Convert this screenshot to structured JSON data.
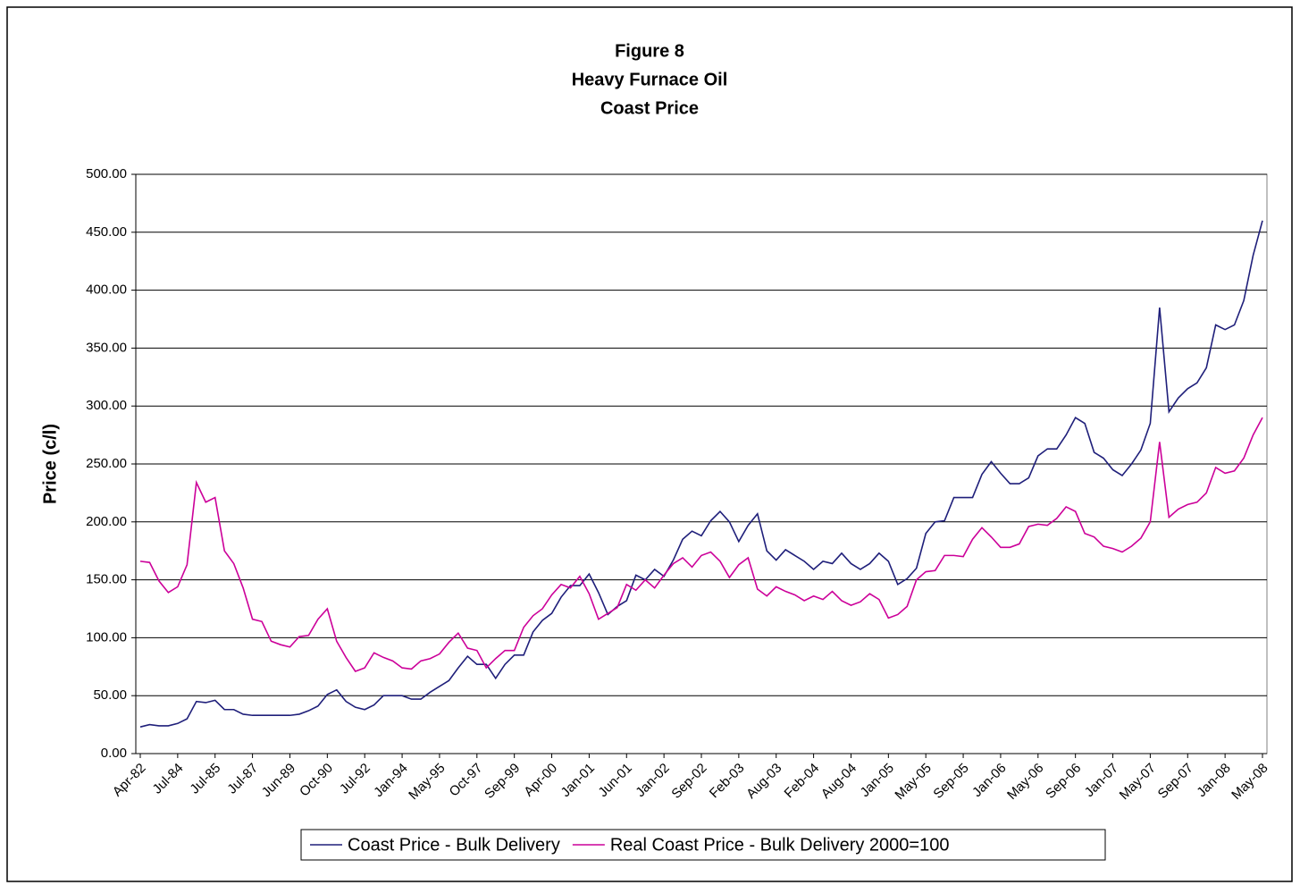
{
  "chart_data": {
    "type": "line",
    "title": [
      "Figure 8",
      "Heavy Furnace Oil",
      "Coast Price"
    ],
    "y_label": "Price (c/l)",
    "categories": [
      "Apr-82",
      null,
      null,
      null,
      "Jul-84",
      null,
      null,
      null,
      "Jul-85",
      null,
      null,
      null,
      "Jul-87",
      null,
      null,
      null,
      "Jun-89",
      null,
      null,
      null,
      "Oct-90",
      null,
      null,
      null,
      "Jul-92",
      null,
      null,
      null,
      "Jan-94",
      null,
      null,
      null,
      "May-95",
      null,
      null,
      null,
      "Oct-97",
      null,
      null,
      null,
      "Sep-99",
      null,
      null,
      null,
      "Apr-00",
      null,
      null,
      null,
      "Jan-01",
      null,
      null,
      null,
      "Jun-01",
      null,
      null,
      null,
      "Jan-02",
      null,
      null,
      null,
      "Sep-02",
      null,
      null,
      null,
      "Feb-03",
      null,
      null,
      null,
      "Aug-03",
      null,
      null,
      null,
      "Feb-04",
      null,
      null,
      null,
      "Aug-04",
      null,
      null,
      null,
      "Jan-05",
      null,
      null,
      null,
      "May-05",
      null,
      null,
      null,
      "Sep-05",
      null,
      null,
      null,
      "Jan-06",
      null,
      null,
      null,
      "May-06",
      null,
      null,
      null,
      "Sep-06",
      null,
      null,
      null,
      "Jan-07",
      null,
      null,
      null,
      "May-07",
      null,
      null,
      null,
      "Sep-07",
      null,
      null,
      null,
      "Jan-08",
      null,
      null,
      null,
      "May-08"
    ],
    "series": [
      {
        "name": "Coast Price - Bulk Delivery",
        "color": "#1f1f7a",
        "values": [
          23,
          25,
          24,
          24,
          26,
          30,
          45,
          44,
          46,
          38,
          38,
          34,
          33,
          33,
          33,
          33,
          33,
          34,
          37,
          41,
          51,
          55,
          45,
          40,
          38,
          42,
          50,
          50,
          50,
          47,
          47,
          53,
          58,
          63,
          74,
          84,
          77,
          77,
          65,
          77,
          85,
          85,
          105,
          115,
          121,
          135,
          145,
          145,
          155,
          139,
          120,
          127,
          132,
          154,
          150,
          159,
          153,
          167,
          185,
          192,
          188,
          201,
          209,
          200,
          183,
          197,
          207,
          175,
          167,
          176,
          171,
          166,
          159,
          166,
          164,
          173,
          164,
          159,
          164,
          173,
          166,
          146,
          151,
          160,
          190,
          200,
          201,
          221,
          221,
          221,
          241,
          252,
          242,
          233,
          233,
          238,
          257,
          263,
          263,
          275,
          290,
          285,
          260,
          255,
          245,
          240,
          250,
          262,
          285,
          385,
          295,
          307,
          315,
          320,
          333,
          370,
          366,
          370,
          391,
          430,
          460
        ]
      },
      {
        "name": "Real Coast Price - Bulk Delivery 2000=100",
        "color": "#cc0099",
        "values": [
          166,
          165,
          149,
          139,
          144,
          163,
          234,
          217,
          221,
          175,
          164,
          143,
          116,
          114,
          97,
          94,
          92,
          101,
          102,
          116,
          125,
          97,
          83,
          71,
          74,
          87,
          83,
          80,
          74,
          73,
          80,
          82,
          86,
          96,
          104,
          91,
          89,
          74,
          82,
          89,
          89,
          109,
          119,
          125,
          137,
          146,
          143,
          153,
          138,
          116,
          121,
          126,
          146,
          141,
          150,
          143,
          154,
          164,
          169,
          161,
          171,
          174,
          166,
          152,
          163,
          169,
          142,
          136,
          144,
          140,
          137,
          132,
          136,
          133,
          140,
          132,
          128,
          131,
          138,
          133,
          117,
          120,
          127,
          150,
          157,
          158,
          171,
          171,
          170,
          185,
          195,
          187,
          178,
          178,
          181,
          196,
          198,
          197,
          203,
          213,
          209,
          190,
          187,
          179,
          177,
          174,
          179,
          186,
          200,
          269,
          204,
          211,
          215,
          217,
          225,
          247,
          242,
          244,
          255,
          275,
          290
        ]
      }
    ],
    "ylim": [
      0,
      500
    ],
    "yticks": [
      {
        "value": 0,
        "label": "0.00"
      },
      {
        "value": 50,
        "label": "50.00"
      },
      {
        "value": 100,
        "label": "100.00"
      },
      {
        "value": 150,
        "label": "150.00"
      },
      {
        "value": 200,
        "label": "200.00"
      },
      {
        "value": 250,
        "label": "250.00"
      },
      {
        "value": 300,
        "label": "300.00"
      },
      {
        "value": 350,
        "label": "350.00"
      },
      {
        "value": 400,
        "label": "400.00"
      },
      {
        "value": 450,
        "label": "450.00"
      },
      {
        "value": 500,
        "label": "500.00"
      }
    ],
    "grid": true,
    "legend": "bottom"
  }
}
